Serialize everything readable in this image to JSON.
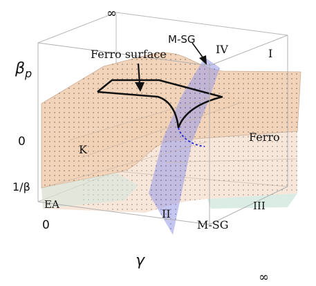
{
  "axes": {
    "beta_p_label": "β",
    "beta_p_subscript": "p",
    "gamma_label": "γ",
    "tick_zero_left": "0",
    "tick_one_over_beta": "1/β",
    "tick_zero_bottom": "0",
    "tick_infinity_top": "∞",
    "tick_infinity_bottom": "∞"
  },
  "regions": {
    "ferro_surface": "Ferro surface",
    "msg_top": "M-SG",
    "msg_bottom": "M-SG",
    "ferro": "Ferro",
    "k": "K",
    "ea": "EA",
    "roman_one": "I",
    "roman_two": "II",
    "roman_three": "III",
    "roman_four": "IV"
  },
  "colors": {
    "surface_fill": "#f2d2b8",
    "surface_edge": "#c9a98f",
    "k_band": "#d9cc9a",
    "msg_sheet": "#9d9fe6",
    "ea_band": "#cfe6dc",
    "box_line": "#b5b5b5",
    "curve": "#111111",
    "dashed_curve": "#2d2fd6"
  }
}
